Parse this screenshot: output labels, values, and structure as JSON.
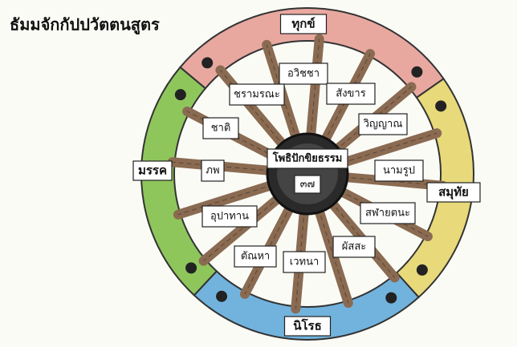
{
  "header": {
    "title": "ธัมมจักกัปปวัตตนสูตร"
  },
  "wheel": {
    "center": {
      "label": "โพธิปักขิยธรรม",
      "number": "๓๗"
    },
    "rim": [
      "ทุกข์",
      "สมุทัย",
      "นิโรธ",
      "มรรค"
    ],
    "spokes": [
      "อวิชชา",
      "สังขาร",
      "วิญญาณ",
      "นามรูป",
      "สฬายตนะ",
      "ผัสสะ",
      "เวทนา",
      "ตัณหา",
      "อุปาทาน",
      "ภพ",
      "ชาติ",
      "ชรามรณะ"
    ]
  }
}
